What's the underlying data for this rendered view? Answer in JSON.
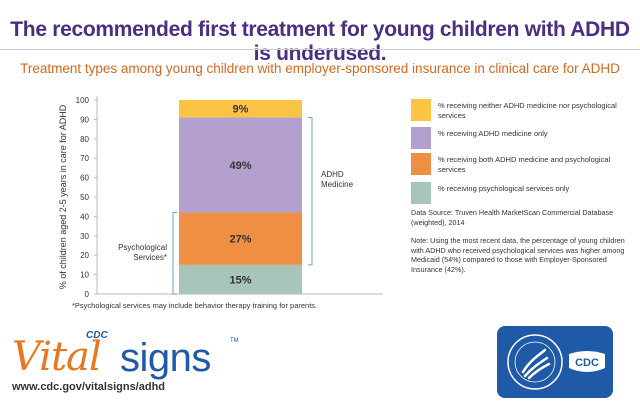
{
  "title": "The recommended first treatment for young children with ADHD is underused.",
  "subtitle": "Treatment types among young children with employer-sponsored insurance in clinical care for ADHD",
  "chart_data": {
    "type": "bar",
    "stacked": true,
    "categories": [
      ""
    ],
    "ylabel": "% of children aged 2-5 years in care for ADHD",
    "ylim": [
      0,
      100
    ],
    "yticks": [
      0,
      10,
      20,
      30,
      40,
      50,
      60,
      70,
      80,
      90,
      100
    ],
    "grid": false,
    "legend_position": "right",
    "series": [
      {
        "name": "% receiving psychological services only",
        "values": [
          15
        ],
        "label": "15%",
        "color": "#a8c5bc"
      },
      {
        "name": "% receiving both ADHD medicine and psychological services",
        "values": [
          27
        ],
        "label": "27%",
        "color": "#ef8f44"
      },
      {
        "name": "% receiving ADHD medicine only",
        "values": [
          49
        ],
        "label": "49%",
        "color": "#b3a0cf"
      },
      {
        "name": "% receiving neither ADHD medicine nor psychological services",
        "values": [
          9
        ],
        "label": "9%",
        "color": "#fcc445"
      }
    ],
    "annotations": {
      "adhd_medicine": {
        "text": [
          "ADHD",
          "Medicine"
        ],
        "range": [
          15,
          91
        ]
      },
      "psychological_services": {
        "text": [
          "Psychological",
          "Services*"
        ],
        "range": [
          0,
          42
        ]
      }
    }
  },
  "legend": [
    {
      "label": "% receiving neither ADHD medicine nor psychological services",
      "color": "#fcc445"
    },
    {
      "label": "% receiving ADHD medicine only",
      "color": "#b3a0cf"
    },
    {
      "label": "% receiving both ADHD medicine and psychological services",
      "color": "#ef8f44"
    },
    {
      "label": "% receiving psychological services only",
      "color": "#a8c5bc"
    }
  ],
  "source": "Data Source: Truven Health MarketScan Commercial Database (weighted), 2014",
  "note": "Note: Using the most recent data, the percentage of young children with ADHD who received psychological services was higher among Medicaid (54%) compared to those with Employer-Sponsored Insurance (42%).",
  "footnote": "*Psychological services may include behavior therapy training for parents.",
  "logo": {
    "cdc": "CDC",
    "vital": "Vital",
    "signs": "signs",
    "tm": "TM"
  },
  "url": "www.cdc.gov/vitalsigns/adhd",
  "badge": {
    "cdc": "CDC"
  },
  "colors": {
    "title": "#4b2e83",
    "subtitle": "#d4681f",
    "hhs_blue": "#1f5aa6"
  }
}
